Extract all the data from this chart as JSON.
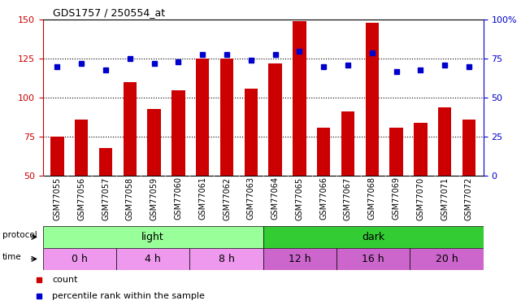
{
  "title": "GDS1757 / 250554_at",
  "samples": [
    "GSM77055",
    "GSM77056",
    "GSM77057",
    "GSM77058",
    "GSM77059",
    "GSM77060",
    "GSM77061",
    "GSM77062",
    "GSM77063",
    "GSM77064",
    "GSM77065",
    "GSM77066",
    "GSM77067",
    "GSM77068",
    "GSM77069",
    "GSM77070",
    "GSM77071",
    "GSM77072"
  ],
  "counts": [
    75,
    86,
    68,
    110,
    93,
    105,
    125,
    125,
    106,
    122,
    149,
    81,
    91,
    148,
    81,
    84,
    94,
    86
  ],
  "percentile": [
    70,
    72,
    68,
    75,
    72,
    73,
    78,
    78,
    74,
    78,
    80,
    70,
    71,
    79,
    67,
    68,
    71,
    70
  ],
  "ylim_left": [
    50,
    150
  ],
  "ylim_right": [
    0,
    100
  ],
  "yticks_left": [
    50,
    75,
    100,
    125,
    150
  ],
  "yticks_right": [
    0,
    25,
    50,
    75,
    100
  ],
  "bar_color": "#cc0000",
  "dot_color": "#0000cc",
  "background_color": "#ffffff",
  "prot_groups": [
    {
      "label": "light",
      "start": 0,
      "end": 9,
      "color": "#99ff99"
    },
    {
      "label": "dark",
      "start": 9,
      "end": 18,
      "color": "#33cc33"
    }
  ],
  "time_groups": [
    {
      "label": "0 h",
      "start": 0,
      "end": 3,
      "color": "#ee99ee"
    },
    {
      "label": "4 h",
      "start": 3,
      "end": 6,
      "color": "#ee99ee"
    },
    {
      "label": "8 h",
      "start": 6,
      "end": 9,
      "color": "#ee99ee"
    },
    {
      "label": "12 h",
      "start": 9,
      "end": 12,
      "color": "#cc66cc"
    },
    {
      "label": "16 h",
      "start": 12,
      "end": 15,
      "color": "#cc66cc"
    },
    {
      "label": "20 h",
      "start": 15,
      "end": 18,
      "color": "#cc66cc"
    }
  ]
}
